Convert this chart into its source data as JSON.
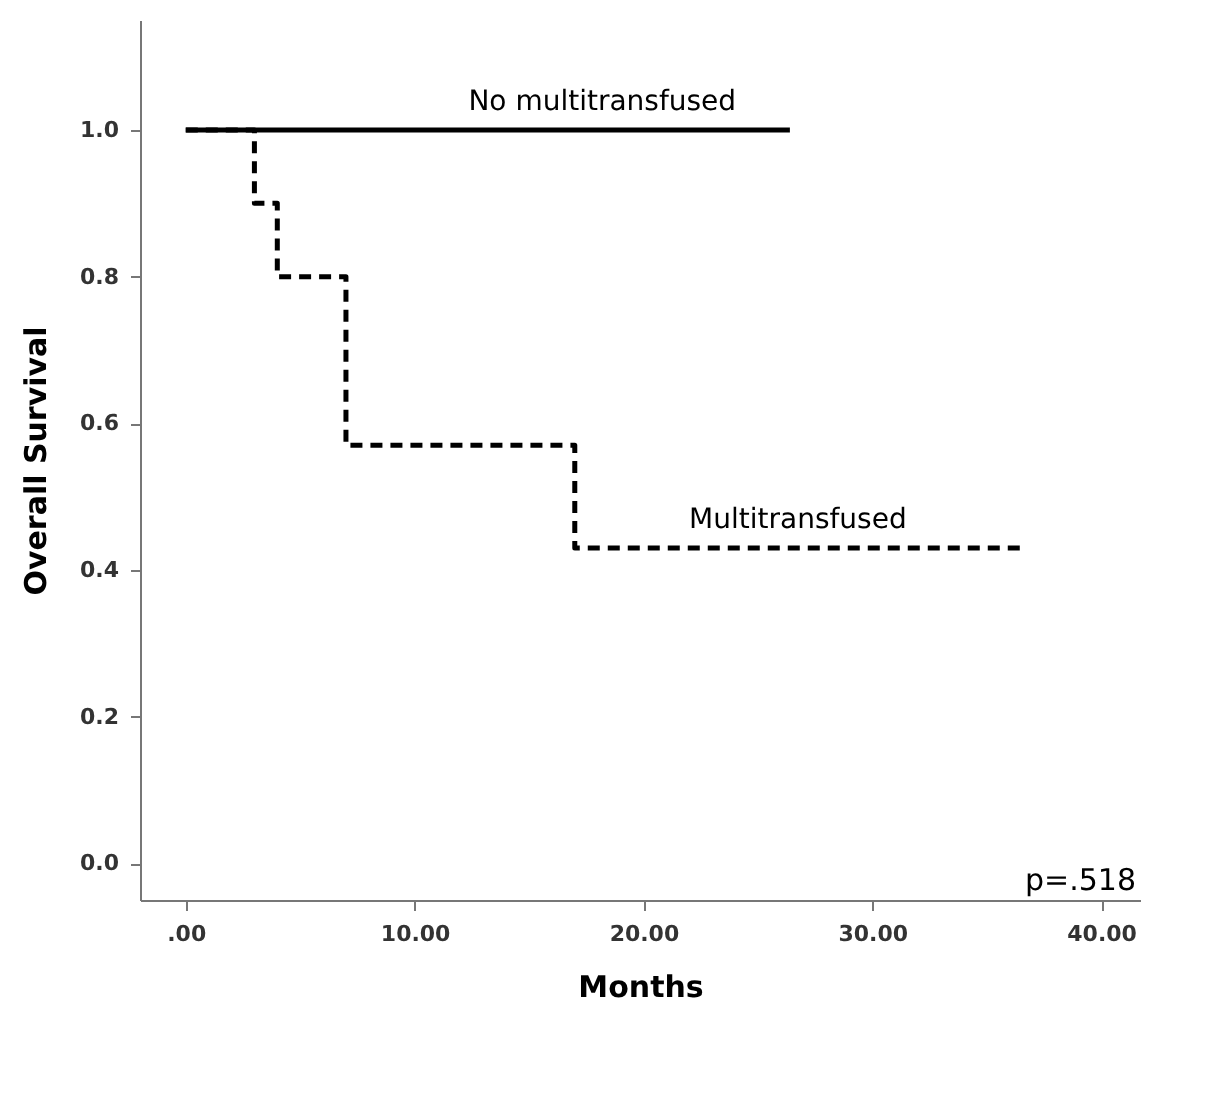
{
  "chart_data": {
    "type": "step",
    "xlabel": "Months",
    "ylabel": "Overall Survival",
    "xlim": [
      -2,
      41.7
    ],
    "ylim": [
      -0.05,
      1.15
    ],
    "xticks": [
      {
        "value": 0,
        "label": ".00"
      },
      {
        "value": 10,
        "label": "10.00"
      },
      {
        "value": 20,
        "label": "20.00"
      },
      {
        "value": 30,
        "label": "30.00"
      },
      {
        "value": 40,
        "label": "40.00"
      }
    ],
    "yticks": [
      {
        "value": 0,
        "label": "0.0"
      },
      {
        "value": 0.2,
        "label": "0.2"
      },
      {
        "value": 0.4,
        "label": "0.4"
      },
      {
        "value": 0.6,
        "label": "0.6"
      },
      {
        "value": 0.8,
        "label": "0.8"
      },
      {
        "value": 1,
        "label": "1.0"
      }
    ],
    "series": [
      {
        "name": "No multitransfused",
        "color": "#000000",
        "line_style": "solid",
        "x": [
          0,
          26.4
        ],
        "values": [
          1,
          1
        ]
      },
      {
        "name": "Multitransfused",
        "color": "#000000",
        "line_style": "dashed",
        "x": [
          0,
          3,
          4,
          7,
          17,
          36.5
        ],
        "values": [
          1,
          0.9,
          0.8,
          0.57,
          0.43,
          0.43
        ]
      }
    ],
    "annotations": [
      "p=.518"
    ],
    "grid": false,
    "marker": "none"
  }
}
